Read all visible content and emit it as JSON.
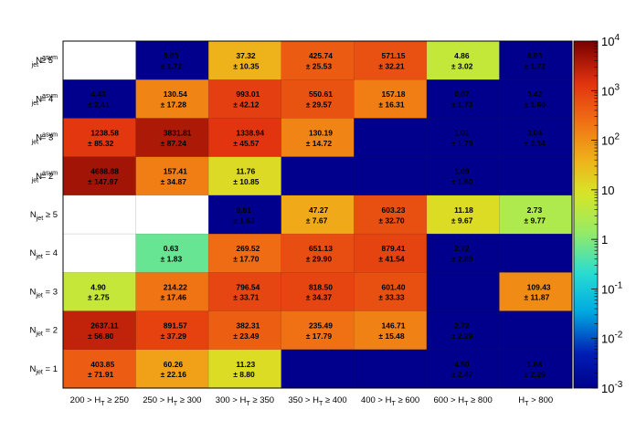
{
  "chart_data": {
    "type": "heatmap",
    "x_categories": [
      "200 > H_T ≥ 250",
      "250 > H_T ≥ 300",
      "300 > H_T ≥ 350",
      "350 > H_T ≥ 400",
      "400 > H_T ≥ 600",
      "600 > H_T ≥ 800",
      "H_T > 800"
    ],
    "y_categories": [
      "N_jet^asym ≥ 5",
      "N_jet^asym = 4",
      "N_jet^asym = 3",
      "N_jet^asym = 2",
      "N_jet ≥ 5",
      "N_jet = 4",
      "N_jet = 3",
      "N_jet = 2",
      "N_jet = 1"
    ],
    "colorbar": {
      "scale": "log",
      "range": [
        0.001,
        10000
      ],
      "tick_labels": [
        "10^4",
        "10^3",
        "10^2",
        "10",
        "1",
        "10^-1",
        "10^-2",
        "10^-3"
      ]
    },
    "cells": [
      [
        null,
        {
          "value": "8.93",
          "error": "± 1.72",
          "z": 0.001
        },
        {
          "value": "37.32",
          "error": "± 10.35",
          "z": 37.32
        },
        {
          "value": "425.74",
          "error": "± 25.53",
          "z": 425.74
        },
        {
          "value": "571.15",
          "error": "± 32.21",
          "z": 571.15
        },
        {
          "value": "4.86",
          "error": "± 3.02",
          "z": 4.86
        },
        {
          "value": "8.93",
          "error": "± 1.72",
          "z": 0.001
        }
      ],
      [
        {
          "value": "4.43",
          "error": "± 2.41",
          "z": 0.001
        },
        {
          "value": "130.54",
          "error": "± 17.28",
          "z": 130.54
        },
        {
          "value": "993.01",
          "error": "± 42.12",
          "z": 993.01
        },
        {
          "value": "550.61",
          "error": "± 29.57",
          "z": 550.61
        },
        {
          "value": "157.18",
          "error": "± 16.31",
          "z": 157.18
        },
        {
          "value": "0.07",
          "error": "± 1.73",
          "z": 0.001
        },
        {
          "value": "0.42",
          "error": "± 1.60",
          "z": 0.001
        }
      ],
      [
        {
          "value": "1238.58",
          "error": "± 85.32",
          "z": 1238.58
        },
        {
          "value": "3831.81",
          "error": "± 87.24",
          "z": 3831.81
        },
        {
          "value": "1338.94",
          "error": "± 45.57",
          "z": 1338.94
        },
        {
          "value": "130.19",
          "error": "± 14.72",
          "z": 130.19
        },
        {
          "z": 0.001
        },
        {
          "value": "1.01",
          "error": "± 1.79",
          "z": 0.001
        },
        {
          "value": "3.04",
          "error": "± 2.14",
          "z": 0.001
        }
      ],
      [
        {
          "value": "4688.88",
          "error": "± 147.97",
          "z": 4688.88
        },
        {
          "value": "157.41",
          "error": "± 34.87",
          "z": 157.41
        },
        {
          "value": "11.76",
          "error": "± 10.85",
          "z": 11.76
        },
        {
          "z": 0.001
        },
        {
          "z": 0.001
        },
        {
          "value": "1.09",
          "error": "± 1.60",
          "z": 0.001
        },
        {
          "z": 0.001
        }
      ],
      [
        null,
        null,
        {
          "value": "8.81",
          "error": "± 1.63",
          "z": 0.001
        },
        {
          "value": "47.27",
          "error": "± 7.67",
          "z": 47.27
        },
        {
          "value": "603.23",
          "error": "± 32.70",
          "z": 603.23
        },
        {
          "value": "11.18",
          "error": "± 9.67",
          "z": 11.18
        },
        {
          "value": "2.73",
          "error": "± 9.77",
          "z": 2.73
        }
      ],
      [
        null,
        {
          "value": "0.63",
          "error": "± 1.83",
          "z": 0.63
        },
        {
          "value": "269.52",
          "error": "± 17.70",
          "z": 269.52
        },
        {
          "value": "651.13",
          "error": "± 29.90",
          "z": 651.13
        },
        {
          "value": "879.41",
          "error": "± 41.54",
          "z": 879.41
        },
        {
          "value": "2.72",
          "error": "± 2.89",
          "z": 0.001
        },
        {
          "z": 0.001
        }
      ],
      [
        {
          "value": "4.90",
          "error": "± 2.75",
          "z": 4.9
        },
        {
          "value": "214.22",
          "error": "± 17.46",
          "z": 214.22
        },
        {
          "value": "796.54",
          "error": "± 33.71",
          "z": 796.54
        },
        {
          "value": "818.50",
          "error": "± 34.37",
          "z": 818.5
        },
        {
          "value": "601.40",
          "error": "± 33.33",
          "z": 601.4
        },
        {
          "z": 0.001
        },
        {
          "value": "109.43",
          "error": "± 11.87",
          "z": 109.43
        }
      ],
      [
        {
          "value": "2637.11",
          "error": "± 56.80",
          "z": 2637.11
        },
        {
          "value": "891.57",
          "error": "± 37.29",
          "z": 891.57
        },
        {
          "value": "382.31",
          "error": "± 23.49",
          "z": 382.31
        },
        {
          "value": "235.49",
          "error": "± 17.79",
          "z": 235.49
        },
        {
          "value": "146.71",
          "error": "± 15.48",
          "z": 146.71
        },
        {
          "value": "2.72",
          "error": "± 2.29",
          "z": 0.001
        },
        {
          "z": 0.001
        }
      ],
      [
        {
          "value": "403.85",
          "error": "± 71.91",
          "z": 403.85
        },
        {
          "value": "60.26",
          "error": "± 22.16",
          "z": 60.26
        },
        {
          "value": "11.23",
          "error": "± 8.80",
          "z": 11.23
        },
        {
          "z": 0.001
        },
        {
          "z": 0.001
        },
        {
          "value": "4.50",
          "error": "± 2.47",
          "z": 0.001
        },
        {
          "value": "1.68",
          "error": "± 2.29",
          "z": 0.001
        }
      ]
    ]
  }
}
